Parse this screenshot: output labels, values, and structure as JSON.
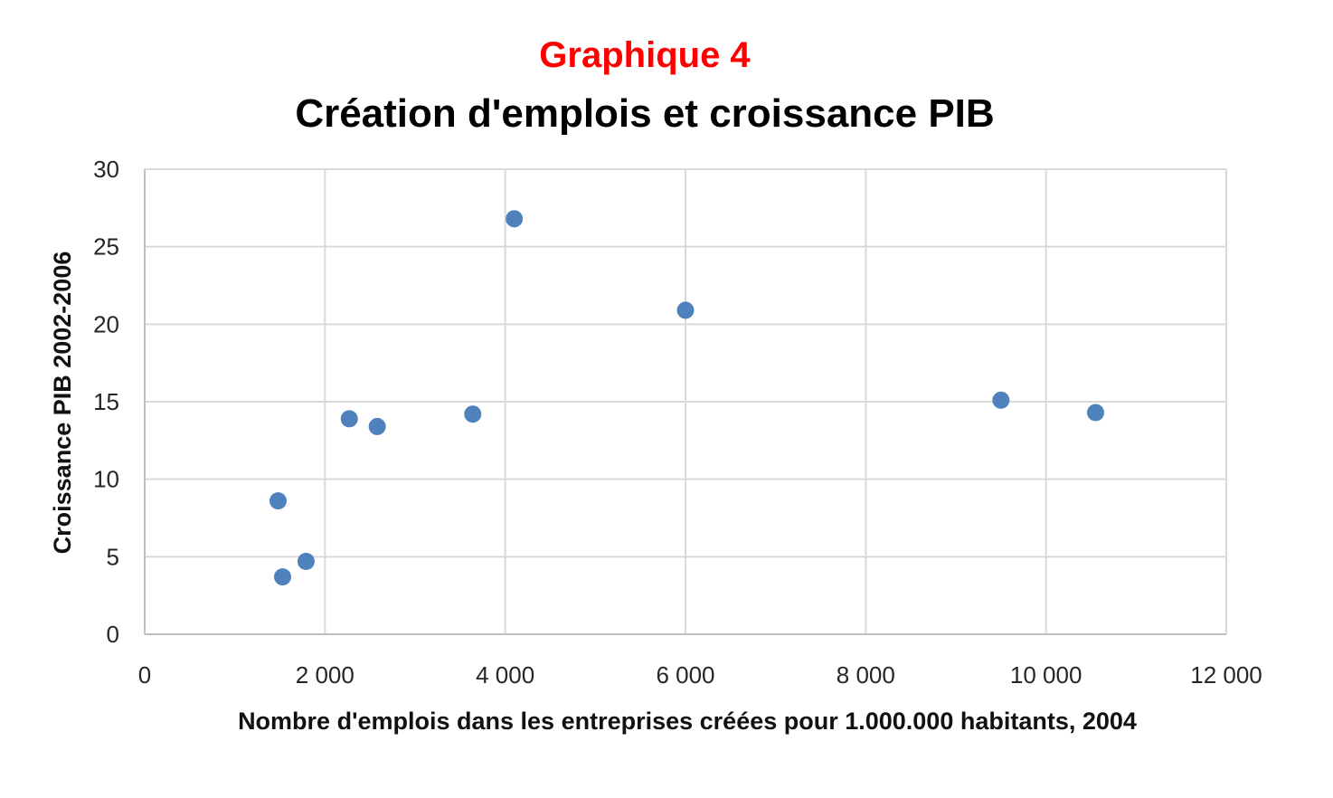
{
  "chart_data": {
    "type": "scatter",
    "subtitle": "Graphique 4",
    "title": "Création d'emplois et croissance PIB",
    "xlabel": "Nombre d'emplois dans les entreprises créées pour 1.000.000 habitants, 2004",
    "ylabel": "Croissance PIB 2002-2006",
    "xlim": [
      0,
      12000
    ],
    "ylim": [
      0,
      30
    ],
    "x_ticks": [
      0,
      2000,
      4000,
      6000,
      8000,
      10000,
      12000
    ],
    "x_tick_labels": [
      "0",
      "2 000",
      "4 000",
      "6 000",
      "8 000",
      "10 000",
      "12 000"
    ],
    "y_ticks": [
      0,
      5,
      10,
      15,
      20,
      25,
      30
    ],
    "y_tick_labels": [
      "0",
      "5",
      "10",
      "15",
      "20",
      "25",
      "30"
    ],
    "grid": true,
    "legend": false,
    "point_color": "#4f81bd",
    "subtitle_color": "#ff0000",
    "points": [
      {
        "x": 1480,
        "y": 8.6
      },
      {
        "x": 1530,
        "y": 3.7
      },
      {
        "x": 1790,
        "y": 4.7
      },
      {
        "x": 2270,
        "y": 13.9
      },
      {
        "x": 2580,
        "y": 13.4
      },
      {
        "x": 3640,
        "y": 14.2
      },
      {
        "x": 4100,
        "y": 26.8
      },
      {
        "x": 6000,
        "y": 20.9
      },
      {
        "x": 9500,
        "y": 15.1
      },
      {
        "x": 10550,
        "y": 14.3
      }
    ]
  }
}
